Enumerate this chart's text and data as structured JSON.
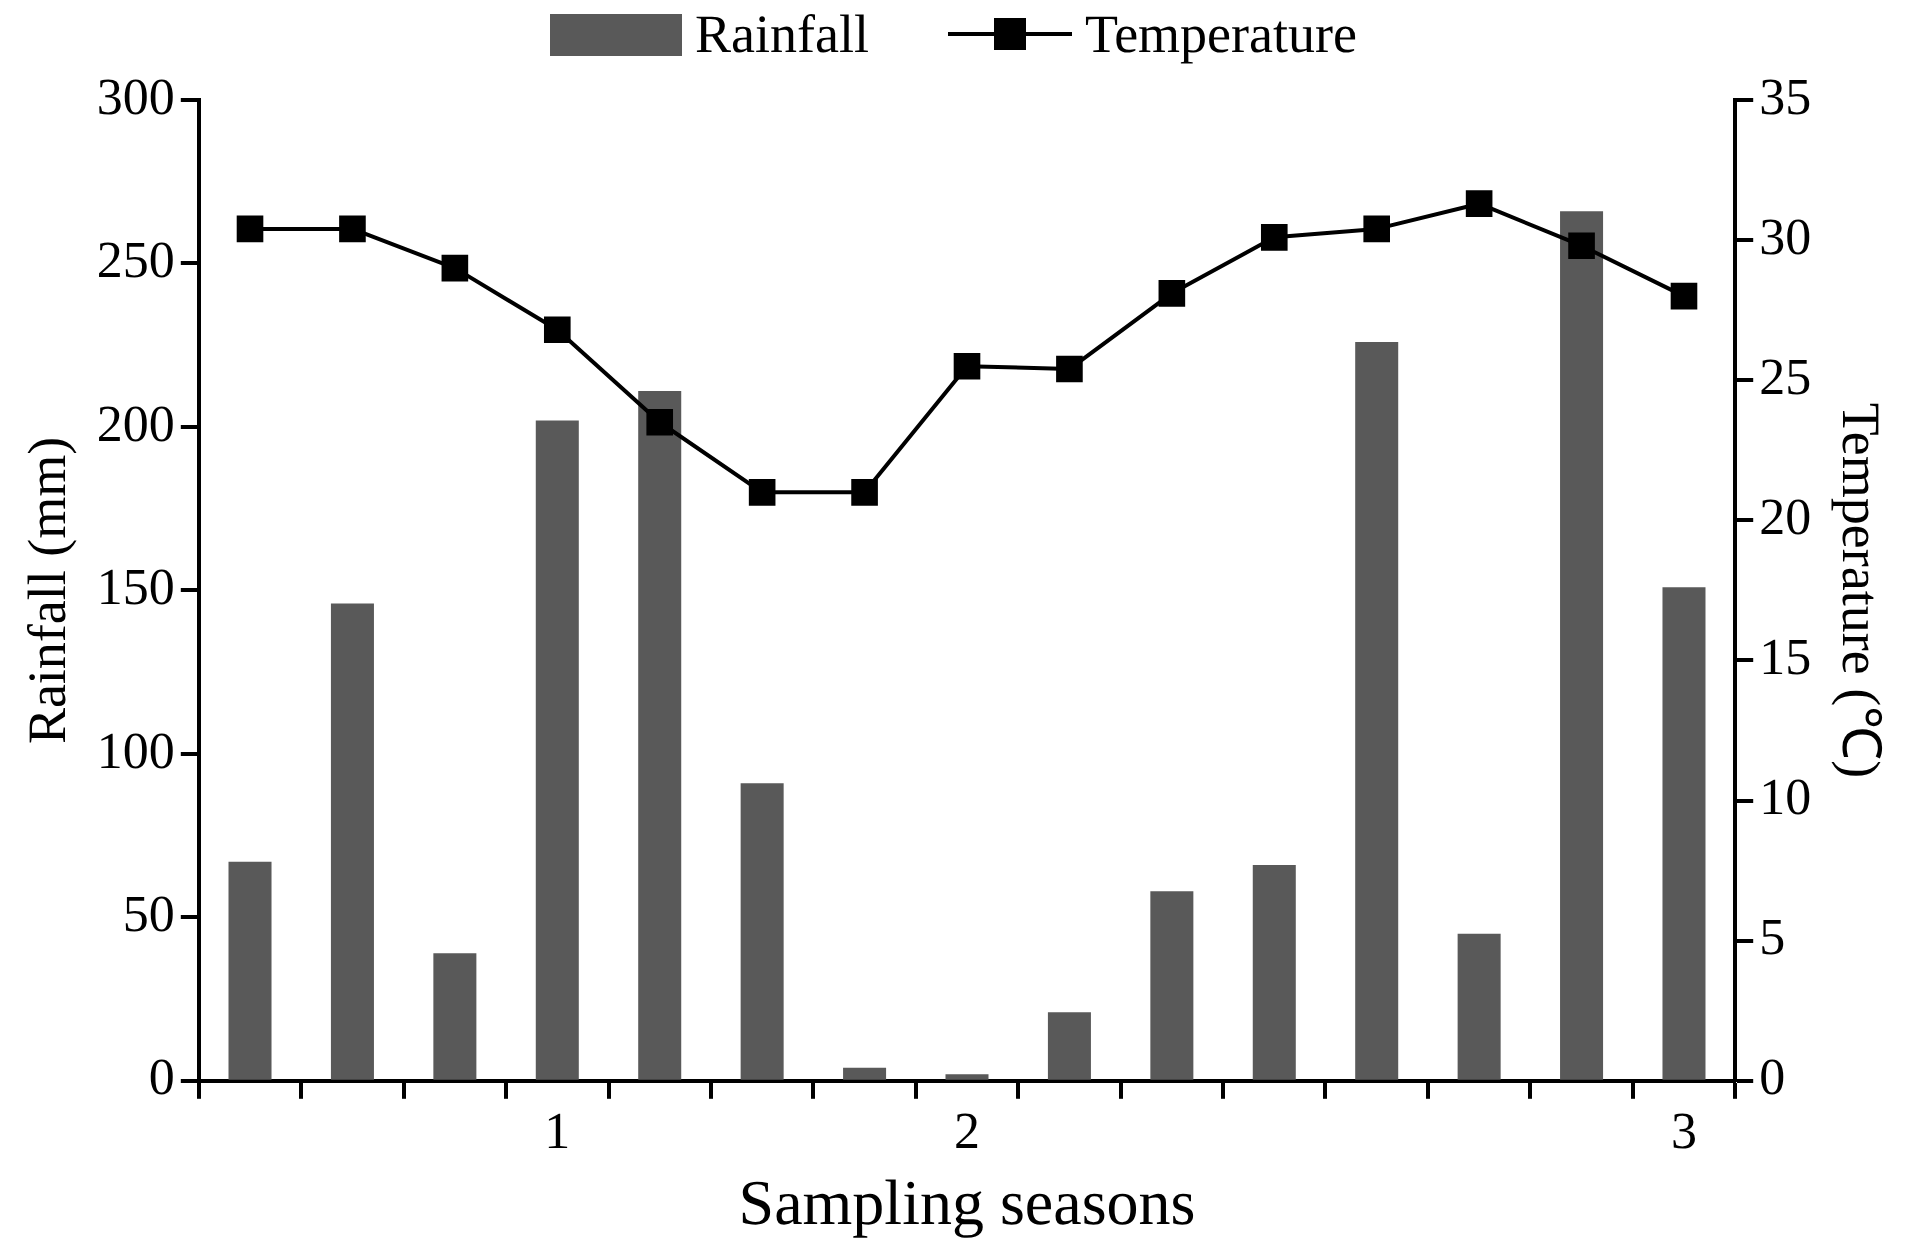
{
  "chart_data": {
    "type": "bar",
    "xlabel": "Sampling seasons",
    "ylabel": "Rainfall (mm)",
    "y2label": "Temperature (℃)",
    "categories": [
      null,
      null,
      null,
      "1",
      null,
      null,
      null,
      "2",
      null,
      null,
      null,
      null,
      null,
      null,
      "3"
    ],
    "series": [
      {
        "name": "Rainfall",
        "color": "#595959",
        "values": [
          67,
          146,
          39,
          202,
          211,
          91,
          4,
          2,
          21,
          58,
          66,
          226,
          45,
          266,
          151
        ]
      },
      {
        "name": "Temperature",
        "type": "line",
        "axis": "y2",
        "color": "#000000",
        "marker": "square",
        "values": [
          30.4,
          30.4,
          29.0,
          26.8,
          23.5,
          21.0,
          21.0,
          25.5,
          25.4,
          28.1,
          30.1,
          30.4,
          31.3,
          29.8,
          28.0
        ]
      }
    ],
    "ylim": [
      0,
      300
    ],
    "yticks": [
      0,
      50,
      100,
      150,
      200,
      250,
      300
    ],
    "y2lim": [
      0,
      35
    ],
    "y2ticks": [
      0,
      5,
      10,
      15,
      20,
      25,
      30,
      35
    ],
    "grid": false,
    "legend": "top"
  }
}
